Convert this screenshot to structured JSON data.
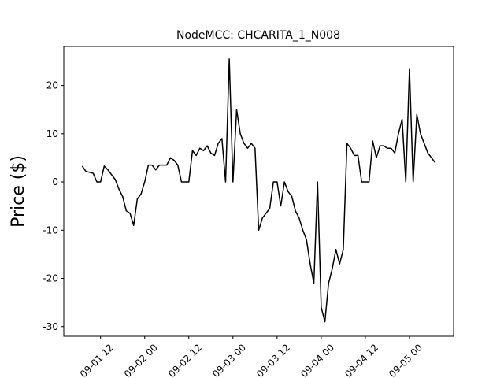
{
  "chart_data": {
    "type": "line",
    "title": "NodeMCC: CHCARITA_1_N008",
    "y_label": "Price ($)",
    "x": [
      "09-01 07",
      "09-01 08",
      "09-01 09",
      "09-01 10",
      "09-01 11",
      "09-01 12",
      "09-01 13",
      "09-01 14",
      "09-01 15",
      "09-01 16",
      "09-01 17",
      "09-01 18",
      "09-01 19",
      "09-01 20",
      "09-01 21",
      "09-01 22",
      "09-01 23",
      "09-02 00",
      "09-02 01",
      "09-02 02",
      "09-02 03",
      "09-02 04",
      "09-02 05",
      "09-02 06",
      "09-02 07",
      "09-02 08",
      "09-02 09",
      "09-02 10",
      "09-02 11",
      "09-02 12",
      "09-02 13",
      "09-02 14",
      "09-02 15",
      "09-02 16",
      "09-02 17",
      "09-02 18",
      "09-02 19",
      "09-02 20",
      "09-02 21",
      "09-02 22",
      "09-02 23",
      "09-03 00",
      "09-03 01",
      "09-03 02",
      "09-03 03",
      "09-03 04",
      "09-03 05",
      "09-03 06",
      "09-03 07",
      "09-03 08",
      "09-03 09",
      "09-03 10",
      "09-03 11",
      "09-03 12",
      "09-03 13",
      "09-03 14",
      "09-03 15",
      "09-03 16",
      "09-03 17",
      "09-03 18",
      "09-03 19",
      "09-03 20",
      "09-03 21",
      "09-03 22",
      "09-03 23",
      "09-04 00",
      "09-04 01",
      "09-04 02",
      "09-04 03",
      "09-04 04",
      "09-04 05",
      "09-04 06",
      "09-04 07",
      "09-04 08",
      "09-04 09",
      "09-04 10",
      "09-04 11",
      "09-04 12",
      "09-04 13",
      "09-04 14",
      "09-04 15",
      "09-04 16",
      "09-04 17",
      "09-04 18",
      "09-04 19",
      "09-04 20",
      "09-04 21",
      "09-04 22",
      "09-04 23",
      "09-05 00",
      "09-05 01",
      "09-05 02",
      "09-05 03",
      "09-05 04",
      "09-05 05",
      "09-05 06",
      "09-05 07"
    ],
    "values": [
      3.3,
      2.2,
      2,
      1.8,
      0,
      0,
      3.3,
      2.5,
      1.5,
      0.5,
      -1.5,
      -3,
      -6,
      -6.5,
      -9,
      -3.5,
      -2.5,
      0,
      3.5,
      3.5,
      2.5,
      3.5,
      3.5,
      3.5,
      5,
      4.5,
      3.5,
      0,
      0,
      0,
      6.5,
      5.5,
      7,
      6.5,
      7.5,
      6,
      5.5,
      8,
      9,
      0,
      25.5,
      0,
      15,
      10,
      8,
      7,
      8,
      7,
      -10,
      -7.5,
      -6.5,
      -5.5,
      0,
      0,
      -5,
      0,
      -2,
      -3,
      -6,
      -7.5,
      -10,
      -12,
      -17,
      -21,
      0,
      -26,
      -29,
      -21,
      -18,
      -14,
      -17,
      -14,
      8,
      7,
      5.5,
      5.5,
      0,
      0,
      0,
      8.5,
      5,
      7.5,
      7.5,
      7,
      7,
      6,
      10,
      13,
      0,
      23.5,
      0,
      14,
      10,
      8,
      6,
      5,
      4
    ],
    "color": "#000000",
    "xlim": [
      "09-01 02",
      "09-05 12"
    ],
    "xticks": [
      "09-01 12",
      "09-02 00",
      "09-02 12",
      "09-03 00",
      "09-03 12",
      "09-04 00",
      "09-04 12",
      "09-05 00"
    ],
    "ylim": [
      -32,
      28.1
    ],
    "yticks": [
      -30,
      -20,
      -10,
      0,
      10,
      20
    ]
  }
}
